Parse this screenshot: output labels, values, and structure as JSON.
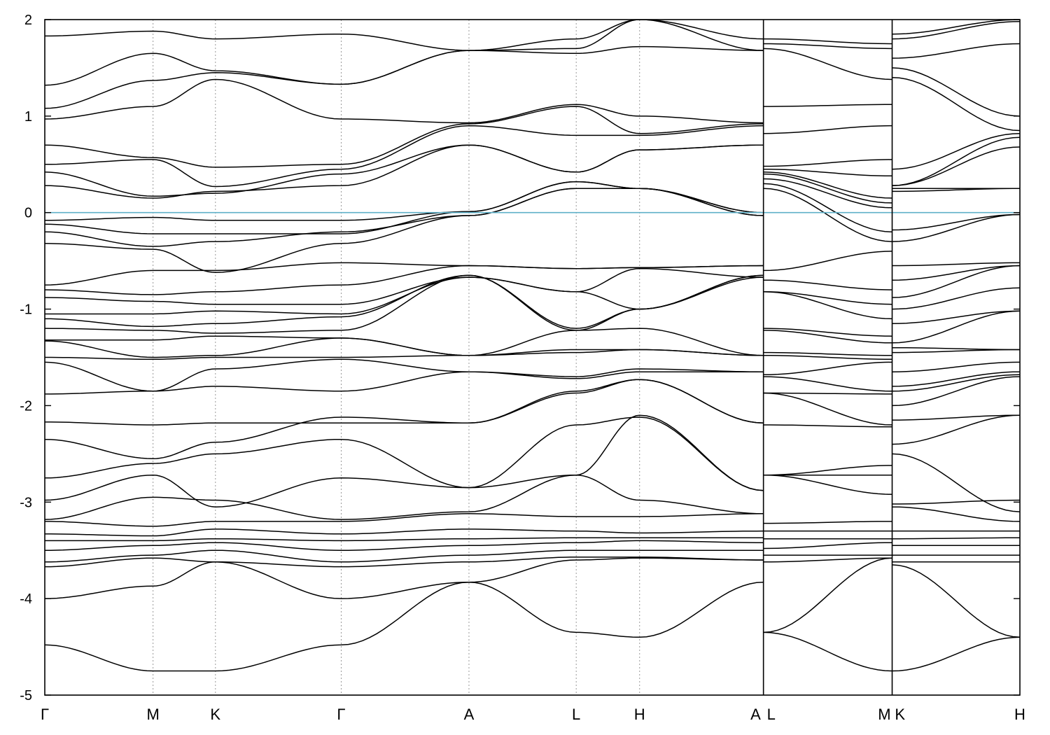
{
  "chart_data": {
    "type": "line",
    "title": "",
    "xlabel": "",
    "ylabel": "",
    "ylim": [
      -5,
      2
    ],
    "yticks": [
      -5,
      -4,
      -3,
      -2,
      -1,
      0,
      1,
      2
    ],
    "grid": "dotted vertical lines at high-symmetry points",
    "fermi_level": 0,
    "colors": {
      "bands": "#000000",
      "fermi_line": "#5fb0c8",
      "kpoint_lines": "#9a9a9a"
    },
    "path_positions": [
      0,
      0.111,
      0.175,
      0.304,
      0.435,
      0.545,
      0.61,
      0.737,
      0.737,
      0.869,
      0.869,
      1.0
    ],
    "kpoints": [
      {
        "label": "Γ",
        "x": 0.0
      },
      {
        "label": "M",
        "x": 0.111
      },
      {
        "label": "K",
        "x": 0.175
      },
      {
        "label": "Γ",
        "x": 0.304
      },
      {
        "label": "A",
        "x": 0.435
      },
      {
        "label": "L",
        "x": 0.545
      },
      {
        "label": "H",
        "x": 0.61
      },
      {
        "label": "A",
        "x": 0.729
      },
      {
        "label": "L",
        "x": 0.745
      },
      {
        "label": "M",
        "x": 0.861
      },
      {
        "label": "K",
        "x": 0.877
      },
      {
        "label": "H",
        "x": 1.0
      }
    ],
    "breaks": [
      0.737,
      0.869
    ],
    "series": [
      {
        "values": [
          -4.48,
          -4.75,
          -4.75,
          -4.48,
          -3.83,
          -4.35,
          -4.4,
          -3.83,
          -4.35,
          -4.75,
          -4.75,
          -4.4
        ]
      },
      {
        "values": [
          -4.0,
          -3.87,
          -3.62,
          -4.0,
          -3.83,
          -3.6,
          -3.58,
          -3.6,
          -4.35,
          -3.58,
          -3.65,
          -4.4
        ]
      },
      {
        "values": [
          -3.67,
          -3.58,
          -3.62,
          -3.67,
          -3.62,
          -3.57,
          -3.57,
          -3.6,
          -3.62,
          -3.58,
          -3.62,
          -3.62
        ]
      },
      {
        "values": [
          -3.62,
          -3.55,
          -3.5,
          -3.62,
          -3.55,
          -3.5,
          -3.5,
          -3.5,
          -3.55,
          -3.55,
          -3.55,
          -3.55
        ]
      },
      {
        "values": [
          -3.5,
          -3.45,
          -3.42,
          -3.5,
          -3.45,
          -3.42,
          -3.4,
          -3.42,
          -3.48,
          -3.42,
          -3.45,
          -3.45
        ]
      },
      {
        "values": [
          -3.4,
          -3.4,
          -3.38,
          -3.4,
          -3.38,
          -3.37,
          -3.37,
          -3.37,
          -3.38,
          -3.38,
          -3.38,
          -3.37
        ]
      },
      {
        "values": [
          -3.33,
          -3.35,
          -3.28,
          -3.33,
          -3.28,
          -3.3,
          -3.32,
          -3.3,
          -3.3,
          -3.3,
          -3.3,
          -3.3
        ]
      },
      {
        "values": [
          -3.2,
          -3.25,
          -3.2,
          -3.2,
          -3.12,
          -3.15,
          -3.15,
          -3.12,
          -3.22,
          -3.2,
          -3.05,
          -3.2
        ]
      },
      {
        "values": [
          -3.18,
          -2.95,
          -2.98,
          -3.18,
          -3.1,
          -2.72,
          -2.98,
          -3.12,
          -2.72,
          -2.92,
          -3.02,
          -2.98
        ]
      },
      {
        "values": [
          -2.98,
          -2.72,
          -3.05,
          -2.75,
          -2.85,
          -2.72,
          -2.1,
          -2.88,
          -2.72,
          -2.72,
          -2.5,
          -3.1
        ]
      },
      {
        "values": [
          -2.75,
          -2.6,
          -2.5,
          -2.35,
          -2.85,
          -2.2,
          -2.12,
          -2.88,
          -2.72,
          -2.62,
          -2.4,
          -2.1
        ]
      },
      {
        "values": [
          -2.35,
          -2.55,
          -2.38,
          -2.12,
          -2.18,
          -1.85,
          -1.73,
          -2.18,
          -2.2,
          -2.22,
          -2.15,
          -2.1
        ]
      },
      {
        "values": [
          -2.17,
          -2.2,
          -2.18,
          -2.18,
          -2.18,
          -1.87,
          -1.73,
          -2.18,
          -1.87,
          -2.2,
          -2.0,
          -1.7
        ]
      },
      {
        "values": [
          -1.88,
          -1.85,
          -1.8,
          -1.85,
          -1.65,
          -1.72,
          -1.65,
          -1.65,
          -1.87,
          -1.88,
          -1.85,
          -1.68
        ]
      },
      {
        "values": [
          -1.55,
          -1.85,
          -1.62,
          -1.52,
          -1.65,
          -1.7,
          -1.62,
          -1.65,
          -1.7,
          -1.85,
          -1.8,
          -1.65
        ]
      },
      {
        "values": [
          -1.5,
          -1.52,
          -1.5,
          -1.5,
          -1.48,
          -1.45,
          -1.42,
          -1.48,
          -1.68,
          -1.55,
          -1.65,
          -1.55
        ]
      },
      {
        "values": [
          -1.33,
          -1.5,
          -1.48,
          -1.3,
          -1.48,
          -1.42,
          -1.42,
          -1.48,
          -1.48,
          -1.52,
          -1.45,
          -1.42
        ]
      },
      {
        "values": [
          -1.32,
          -1.32,
          -1.28,
          -1.3,
          -1.48,
          -1.22,
          -1.2,
          -1.48,
          -1.45,
          -1.48,
          -1.4,
          -1.42
        ]
      },
      {
        "values": [
          -1.2,
          -1.22,
          -1.25,
          -1.22,
          -0.65,
          -1.22,
          -1.0,
          -0.65,
          -1.22,
          -1.35,
          -1.35,
          -1.02
        ]
      },
      {
        "values": [
          -1.1,
          -1.18,
          -1.15,
          -1.08,
          -0.65,
          -1.2,
          -1.0,
          -0.65,
          -1.2,
          -1.28,
          -1.15,
          -1.02
        ]
      },
      {
        "values": [
          -1.05,
          -1.05,
          -1.02,
          -1.05,
          -0.67,
          -0.82,
          -1.0,
          -0.67,
          -0.82,
          -1.1,
          -1.0,
          -0.78
        ]
      },
      {
        "values": [
          -0.88,
          -0.92,
          -0.95,
          -0.95,
          -0.67,
          -0.82,
          -0.58,
          -0.67,
          -0.82,
          -0.95,
          -0.88,
          -0.55
        ]
      },
      {
        "values": [
          -0.8,
          -0.85,
          -0.82,
          -0.75,
          -0.55,
          -0.58,
          -0.57,
          -0.55,
          -0.7,
          -0.8,
          -0.7,
          -0.55
        ]
      },
      {
        "values": [
          -0.75,
          -0.6,
          -0.6,
          -0.52,
          -0.55,
          -0.58,
          -0.57,
          -0.55,
          -0.6,
          -0.4,
          -0.55,
          -0.52
        ]
      },
      {
        "values": [
          -0.32,
          -0.38,
          -0.62,
          -0.32,
          -0.03,
          0.25,
          0.25,
          -0.03,
          0.25,
          -0.3,
          -0.3,
          -0.02
        ]
      },
      {
        "values": [
          -0.2,
          -0.35,
          -0.3,
          -0.2,
          -0.03,
          0.25,
          0.25,
          -0.03,
          0.3,
          -0.2,
          -0.18,
          -0.02
        ]
      },
      {
        "values": [
          -0.12,
          -0.22,
          -0.22,
          -0.22,
          0.01,
          0.32,
          0.25,
          0.0,
          0.35,
          0.05,
          0.22,
          0.25
        ]
      },
      {
        "values": [
          -0.08,
          -0.05,
          -0.08,
          -0.08,
          0.01,
          0.32,
          0.25,
          0.0,
          0.4,
          0.1,
          0.25,
          0.25
        ]
      },
      {
        "values": [
          0.28,
          0.15,
          0.22,
          0.28,
          0.7,
          0.42,
          0.65,
          0.7,
          0.42,
          0.15,
          0.28,
          0.68
        ]
      },
      {
        "values": [
          0.42,
          0.17,
          0.2,
          0.4,
          0.7,
          0.42,
          0.65,
          0.7,
          0.45,
          0.38,
          0.28,
          0.78
        ]
      },
      {
        "values": [
          0.5,
          0.55,
          0.27,
          0.45,
          0.9,
          0.8,
          0.8,
          0.9,
          0.48,
          0.55,
          0.45,
          0.82
        ]
      },
      {
        "values": [
          0.7,
          0.57,
          0.47,
          0.5,
          0.92,
          1.1,
          0.82,
          0.92,
          0.82,
          0.9,
          1.4,
          0.85
        ]
      },
      {
        "values": [
          0.97,
          1.1,
          1.38,
          0.97,
          0.93,
          1.12,
          1.0,
          0.93,
          1.1,
          1.12,
          1.5,
          1.0
        ]
      },
      {
        "values": [
          1.08,
          1.37,
          1.45,
          1.33,
          1.68,
          1.65,
          1.72,
          1.68,
          1.7,
          1.38,
          1.6,
          1.75
        ]
      },
      {
        "values": [
          1.32,
          1.65,
          1.47,
          1.33,
          1.68,
          1.7,
          2.0,
          1.68,
          1.75,
          1.7,
          1.8,
          1.98
        ]
      },
      {
        "values": [
          1.83,
          1.88,
          1.8,
          1.85,
          1.68,
          1.8,
          2.0,
          1.8,
          1.8,
          1.75,
          1.85,
          2.0
        ]
      }
    ]
  }
}
